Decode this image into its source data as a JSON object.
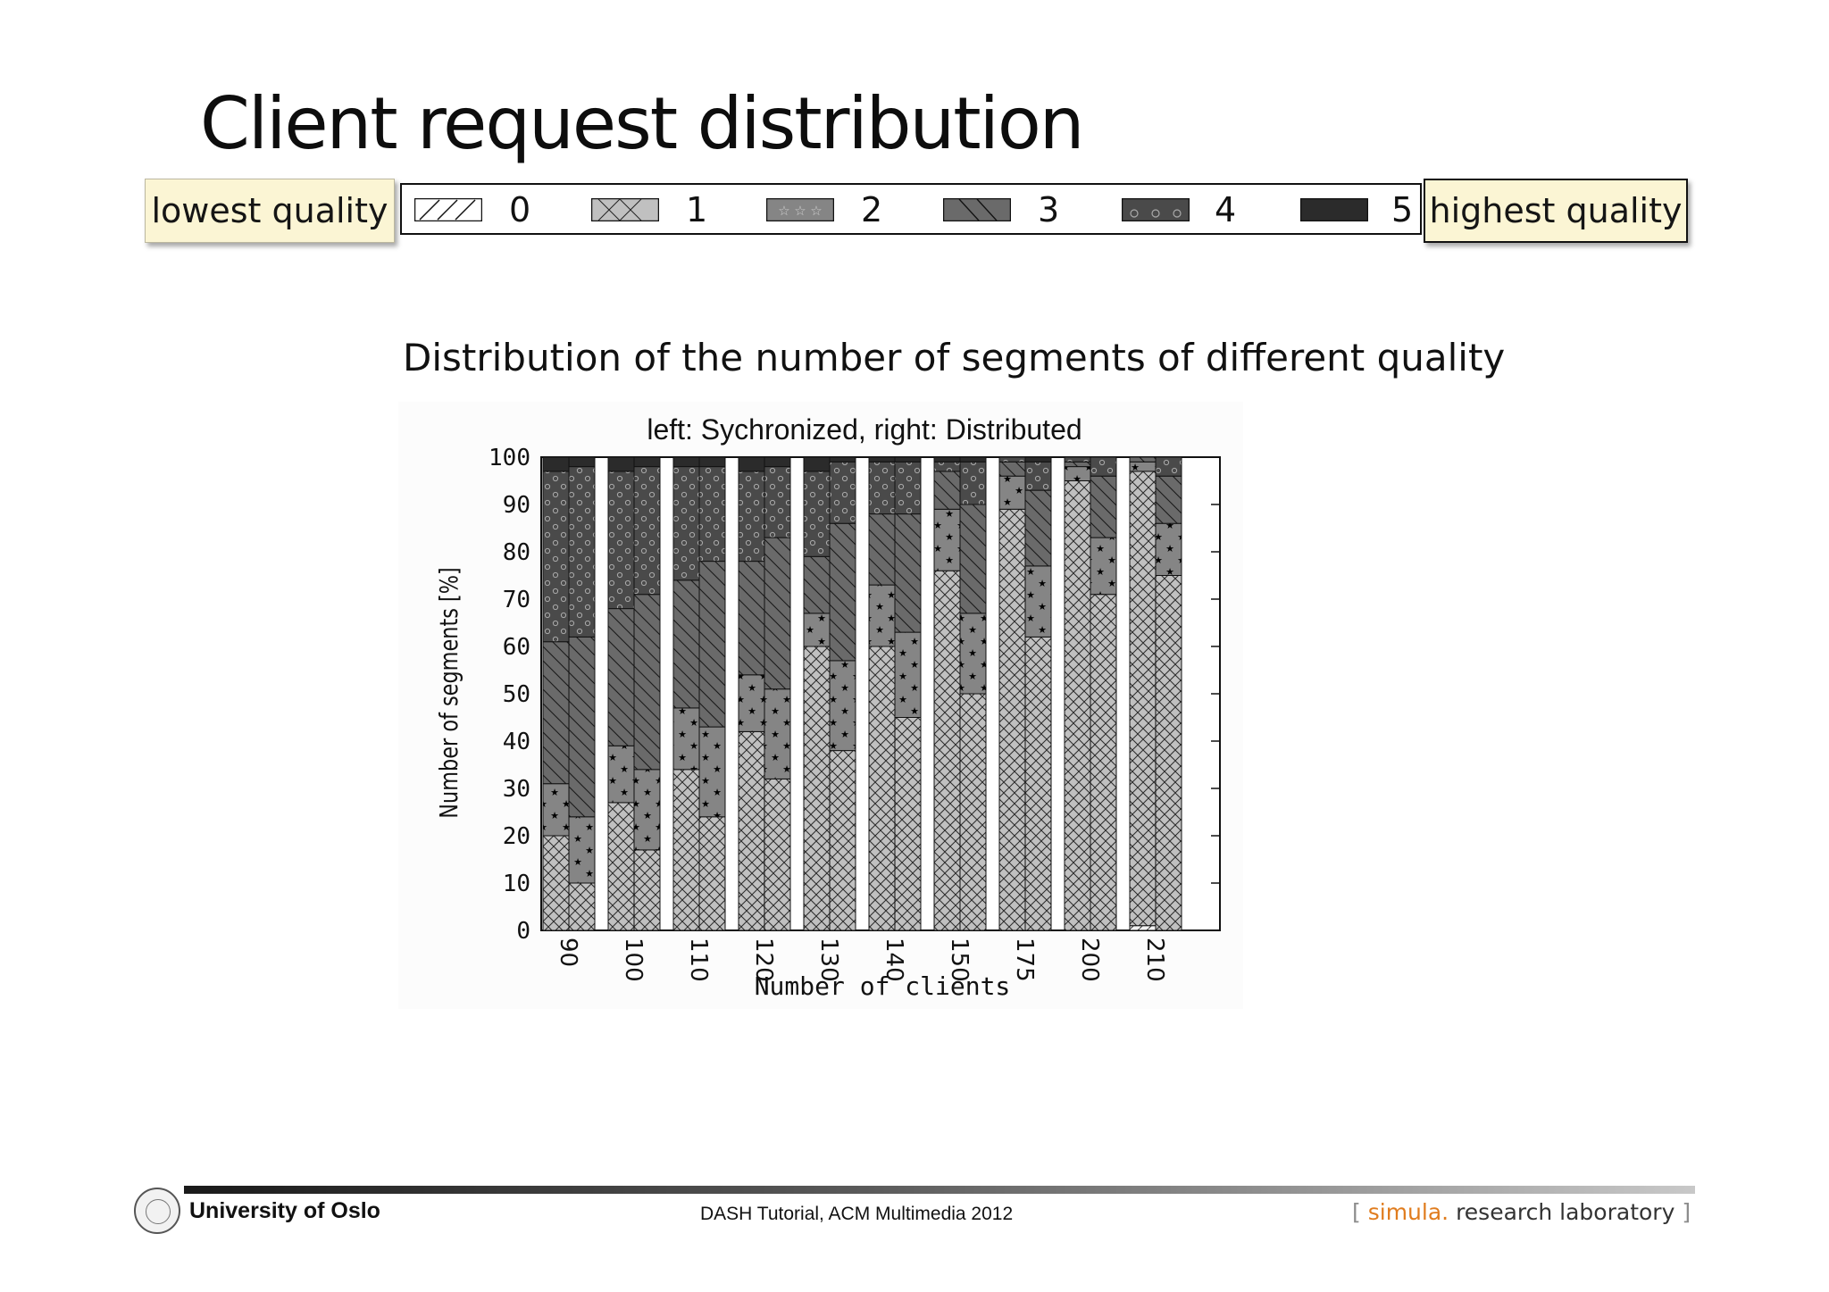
{
  "slide": {
    "title": "Client request distribution",
    "lowest_quality_note": "lowest quality",
    "highest_quality_note": "highest quality",
    "chart_heading": "Distribution of the number of segments of different quality"
  },
  "legend": [
    {
      "label": "0",
      "pattern": "hatch-diagonal"
    },
    {
      "label": "1",
      "pattern": "crosshatch"
    },
    {
      "label": "2",
      "pattern": "stars"
    },
    {
      "label": "3",
      "pattern": "hatch-backslash"
    },
    {
      "label": "4",
      "pattern": "circles"
    },
    {
      "label": "5",
      "pattern": "solid-dark"
    }
  ],
  "colors": {
    "q0": "#f2f2f2",
    "q1": "#c0c0c0",
    "q2": "#858585",
    "q3": "#6a6a6a",
    "q4": "#4a4a4a",
    "q5": "#2b2b2b",
    "note_bg": "#fbf5d4",
    "simula_orange": "#e07c1e"
  },
  "chart_data": {
    "type": "bar",
    "stacked": true,
    "title": "left: Sychronized, right: Distributed",
    "xlabel": "Number of clients",
    "ylabel": "Number of segments [%]",
    "ylim": [
      0,
      100
    ],
    "yticks": [
      0,
      10,
      20,
      30,
      40,
      50,
      60,
      70,
      80,
      90,
      100
    ],
    "categories": [
      "90",
      "100",
      "110",
      "120",
      "130",
      "140",
      "150",
      "175",
      "200",
      "210"
    ],
    "series_order": [
      "0",
      "1",
      "2",
      "3",
      "4",
      "5"
    ],
    "groups": [
      {
        "category": "90",
        "synchronized": [
          0,
          20,
          11,
          30,
          36,
          3
        ],
        "distributed": [
          0,
          10,
          14,
          38,
          36,
          2
        ]
      },
      {
        "category": "100",
        "synchronized": [
          0,
          27,
          12,
          29,
          29,
          3
        ],
        "distributed": [
          0,
          17,
          17,
          37,
          27,
          2
        ]
      },
      {
        "category": "110",
        "synchronized": [
          0,
          34,
          13,
          27,
          24,
          2
        ],
        "distributed": [
          0,
          24,
          19,
          35,
          20,
          2
        ]
      },
      {
        "category": "120",
        "synchronized": [
          0,
          42,
          12,
          24,
          19,
          3
        ],
        "distributed": [
          0,
          32,
          19,
          32,
          15,
          2
        ]
      },
      {
        "category": "130",
        "synchronized": [
          0,
          60,
          7,
          12,
          18,
          3
        ],
        "distributed": [
          0,
          38,
          19,
          29,
          13,
          1
        ]
      },
      {
        "category": "140",
        "synchronized": [
          0,
          60,
          13,
          15,
          11,
          1
        ],
        "distributed": [
          0,
          45,
          18,
          25,
          11,
          1
        ]
      },
      {
        "category": "150",
        "synchronized": [
          0,
          76,
          13,
          8,
          2,
          1
        ],
        "distributed": [
          0,
          50,
          17,
          23,
          9,
          1
        ]
      },
      {
        "category": "175",
        "synchronized": [
          0,
          89,
          7,
          3,
          1,
          0
        ],
        "distributed": [
          0,
          62,
          15,
          16,
          6,
          1
        ]
      },
      {
        "category": "200",
        "synchronized": [
          0,
          95,
          3,
          1,
          1,
          0
        ],
        "distributed": [
          0,
          71,
          12,
          13,
          4,
          0
        ]
      },
      {
        "category": "210",
        "synchronized": [
          1,
          96,
          2,
          1,
          0,
          0
        ],
        "distributed": [
          0,
          75,
          11,
          10,
          4,
          0
        ]
      }
    ]
  },
  "footer": {
    "university": "University of Oslo",
    "center_text": "DASH Tutorial, ACM Multimedia 2012",
    "simula_open": "[",
    "simula_name": "simula",
    "simula_dot": ".",
    "simula_rest": "research laboratory",
    "simula_close": "]"
  }
}
